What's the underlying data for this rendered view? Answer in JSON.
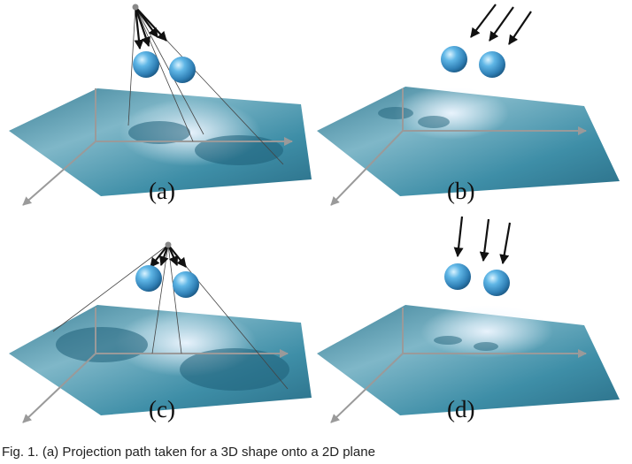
{
  "panels": [
    {
      "id": "a",
      "label": "(a)",
      "light": "point"
    },
    {
      "id": "b",
      "label": "(b)",
      "light": "directional"
    },
    {
      "id": "c",
      "label": "(c)",
      "light": "point"
    },
    {
      "id": "d",
      "label": "(d)",
      "light": "directional"
    }
  ],
  "caption": "Fig. 1. (a) Projection path taken for a 3D shape onto a 2D plane"
}
